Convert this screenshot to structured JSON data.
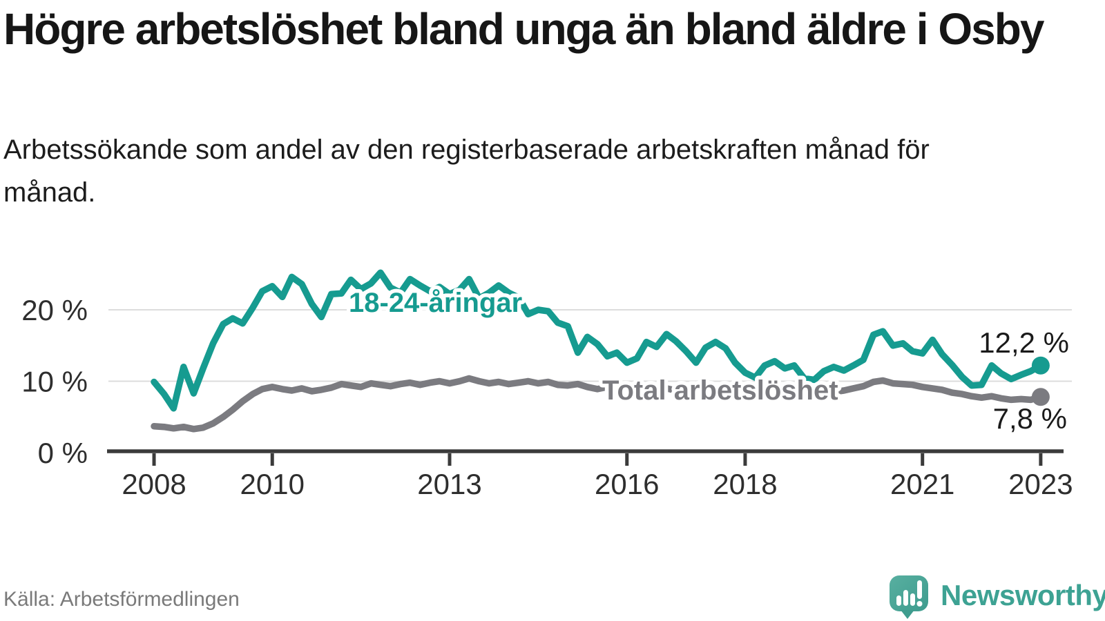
{
  "title": "Högre arbetslöshet bland unga än bland äldre i Osby",
  "subtitle": "Arbetssökande som andel av den registerbaserade arbetskraften månad för månad.",
  "source": "Källa: Arbetsförmedlingen",
  "branding": {
    "name": "Newsworthy",
    "logo_icon": "speech-bubble-bar-chart-icon",
    "logo_color_top": "#58afa0",
    "logo_color_bottom": "#3e9c8e",
    "wordmark_color": "#3da293"
  },
  "colors": {
    "background": "#ffffff",
    "young_series": "#169b90",
    "total_series": "#7b7b80",
    "axis": "#3b3b3b",
    "grid": "#dcdcdc",
    "axis_text": "#2e2e2e",
    "value_label_text": "#1a1a1a"
  },
  "chart_data": {
    "type": "line",
    "title": "Högre arbetslöshet bland unga än bland äldre i Osby",
    "xlabel": "",
    "ylabel": "Arbetssökande som andel av den registerbaserade arbetskraften",
    "unit": "%",
    "grid": "horizontal",
    "legend_position": "inline-labels",
    "xlim": [
      2007.24,
      2023.27
    ],
    "ylim": [
      0,
      26
    ],
    "x_ticks": [
      {
        "v": 2008,
        "label": "2008"
      },
      {
        "v": 2010,
        "label": "2010"
      },
      {
        "v": 2013,
        "label": "2013"
      },
      {
        "v": 2016,
        "label": "2016"
      },
      {
        "v": 2018,
        "label": "2018"
      },
      {
        "v": 2021,
        "label": "2021"
      },
      {
        "v": 2023,
        "label": "2023"
      }
    ],
    "y_ticks": [
      {
        "v": 0,
        "label": "0 %"
      },
      {
        "v": 10,
        "label": "10 %"
      },
      {
        "v": 20,
        "label": "20 %"
      }
    ],
    "x": [
      2008,
      2008.17,
      2008.33,
      2008.5,
      2008.67,
      2008.83,
      2009,
      2009.17,
      2009.33,
      2009.5,
      2009.67,
      2009.83,
      2010,
      2010.17,
      2010.33,
      2010.5,
      2010.67,
      2010.83,
      2011,
      2011.17,
      2011.33,
      2011.5,
      2011.67,
      2011.83,
      2012,
      2012.17,
      2012.33,
      2012.5,
      2012.67,
      2012.83,
      2013,
      2013.17,
      2013.33,
      2013.5,
      2013.67,
      2013.83,
      2014,
      2014.17,
      2014.33,
      2014.5,
      2014.67,
      2014.83,
      2015,
      2015.17,
      2015.33,
      2015.5,
      2015.67,
      2015.83,
      2016,
      2016.17,
      2016.33,
      2016.5,
      2016.67,
      2016.83,
      2017,
      2017.17,
      2017.33,
      2017.5,
      2017.67,
      2017.83,
      2018,
      2018.17,
      2018.33,
      2018.5,
      2018.67,
      2018.83,
      2019,
      2019.17,
      2019.33,
      2019.5,
      2019.67,
      2019.83,
      2020,
      2020.17,
      2020.33,
      2020.5,
      2020.67,
      2020.83,
      2021,
      2021.17,
      2021.33,
      2021.5,
      2021.67,
      2021.83,
      2022,
      2022.17,
      2022.33,
      2022.5,
      2022.67,
      2022.83,
      2023
    ],
    "series": [
      {
        "name": "18-24-åringar",
        "color": "#169b90",
        "end_value": 12.2,
        "end_label": "12,2 %",
        "values": [
          9.9,
          8.2,
          6.2,
          12,
          8.3,
          11.8,
          15.3,
          18,
          18.8,
          18.1,
          20.3,
          22.6,
          23.3,
          21.8,
          24.6,
          23.6,
          20.8,
          19,
          22.2,
          22.3,
          24.2,
          22.9,
          23.7,
          25.2,
          23.1,
          22.4,
          24.3,
          23.4,
          22.6,
          23.2,
          22.2,
          22.8,
          24.3,
          21.6,
          22.4,
          23.4,
          22.4,
          21.7,
          19.4,
          20,
          19.8,
          18.2,
          17.7,
          14,
          16.2,
          15.2,
          13.5,
          14,
          12.6,
          13.2,
          15.5,
          14.8,
          16.6,
          15.6,
          14.2,
          12.6,
          14.7,
          15.5,
          14.6,
          12.6,
          11.2,
          10.5,
          12.2,
          12.8,
          11.8,
          12.2,
          10.4,
          10.2,
          11.4,
          12,
          11.5,
          12.2,
          13,
          16.5,
          17,
          15,
          15.3,
          14.2,
          13.9,
          15.8,
          13.8,
          12.3,
          10.6,
          9.4,
          9.5,
          12.2,
          11.1,
          10.3,
          10.9,
          11.4,
          12.2
        ]
      },
      {
        "name": "Total arbetslöshet",
        "color": "#7b7b80",
        "end_value": 7.8,
        "end_label": "7,8 %",
        "values": [
          3.7,
          3.6,
          3.4,
          3.6,
          3.3,
          3.5,
          4.1,
          5,
          6,
          7.2,
          8.2,
          8.9,
          9.2,
          8.9,
          8.7,
          9,
          8.6,
          8.8,
          9.1,
          9.6,
          9.4,
          9.2,
          9.7,
          9.5,
          9.3,
          9.6,
          9.8,
          9.5,
          9.8,
          10,
          9.7,
          10,
          10.4,
          10,
          9.7,
          9.9,
          9.6,
          9.8,
          10,
          9.7,
          9.9,
          9.5,
          9.4,
          9.6,
          9.2,
          8.9,
          9.2,
          8.9,
          8.6,
          8.9,
          9.2,
          8.9,
          9,
          8.7,
          8.8,
          9.1,
          8.9,
          8.7,
          8.9,
          8.6,
          8.4,
          8.6,
          8.8,
          8.5,
          8.6,
          8.4,
          8.3,
          8.5,
          8.7,
          8.5,
          8.7,
          9,
          9.3,
          9.9,
          10.1,
          9.7,
          9.6,
          9.5,
          9.2,
          9,
          8.8,
          8.4,
          8.2,
          7.9,
          7.7,
          7.9,
          7.6,
          7.4,
          7.5,
          7.4,
          7.8
        ]
      }
    ]
  }
}
